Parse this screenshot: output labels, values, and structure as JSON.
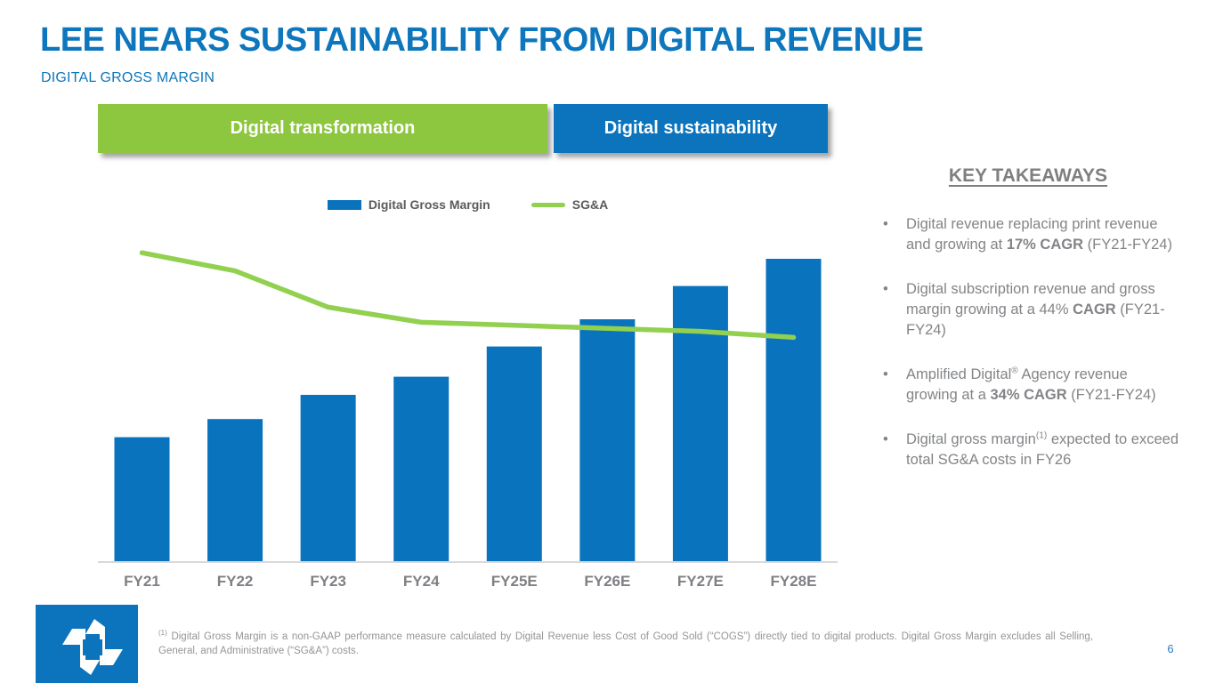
{
  "slide": {
    "title": "LEE NEARS SUSTAINABILITY FROM DIGITAL REVENUE",
    "subtitle": "DIGITAL GROSS MARGIN",
    "page_number": "6"
  },
  "banners": [
    {
      "label": "Digital transformation",
      "color": "#8dc63f"
    },
    {
      "label": "Digital sustainability",
      "color": "#0b74bd"
    }
  ],
  "legend": [
    {
      "label": "Digital Gross Margin",
      "type": "bar",
      "color": "#0a73bd"
    },
    {
      "label": "SG&A",
      "type": "line",
      "color": "#92d050"
    }
  ],
  "chart_data": {
    "type": "bar",
    "title": "",
    "xlabel": "",
    "ylabel": "",
    "categories": [
      "FY21",
      "FY22",
      "FY23",
      "FY24",
      "FY25E",
      "FY26E",
      "FY27E",
      "FY28E"
    ],
    "series": [
      {
        "name": "Digital Gross Margin",
        "type": "bar",
        "color": "#0a73bd",
        "values": [
          41,
          47,
          55,
          61,
          71,
          80,
          91,
          100
        ]
      },
      {
        "name": "SG&A",
        "type": "line",
        "color": "#92d050",
        "values": [
          102,
          96,
          84,
          79,
          78,
          77,
          76,
          74
        ]
      }
    ],
    "unit": "relative scale (FY28E bar = 100), no y-axis shown",
    "ylim": [
      0,
      112
    ],
    "grid": false,
    "legend_position": "top-center",
    "axis_label_color": "#7f8084",
    "axis_line_color": "#d9d9d9"
  },
  "key_takeaways": {
    "heading": "KEY TAKEAWAYS",
    "bullets": [
      {
        "segments": [
          {
            "t": "Digital revenue replacing print revenue and growing at "
          },
          {
            "t": "17% CAGR",
            "b": true
          },
          {
            "t": " (FY21-FY24)"
          }
        ]
      },
      {
        "segments": [
          {
            "t": "Digital subscription revenue and gross margin growing at a 44% "
          },
          {
            "t": "CAGR",
            "b": true
          },
          {
            "t": " (FY21-FY24)"
          }
        ]
      },
      {
        "segments": [
          {
            "t": "Amplified Digital"
          },
          {
            "t": "®",
            "sup": true
          },
          {
            "t": " Agency revenue growing at a "
          },
          {
            "t": "34% CAGR",
            "b": true
          },
          {
            "t": " (FY21-FY24)"
          }
        ]
      },
      {
        "segments": [
          {
            "t": "Digital gross margin"
          },
          {
            "t": "(1)",
            "sup": true
          },
          {
            "t": " expected to exceed total SG&A costs in FY26"
          }
        ]
      }
    ]
  },
  "footnote": {
    "segments": [
      {
        "t": "(1)",
        "sup": true
      },
      {
        "t": " Digital Gross Margin is a non-GAAP performance measure calculated by Digital Revenue less Cost of Good Sold (“COGS”) directly tied to digital products. Digital Gross Margin excludes all Selling, General, and Administrative (“SG&A”) costs."
      }
    ]
  },
  "logo": {
    "name": "Lee Enterprises logo",
    "color": "#0b74bd"
  },
  "colors": {
    "title_blue": "#0d76bc",
    "bar_blue": "#0a73bd",
    "line_green": "#92d050",
    "banner_green": "#8dc63f",
    "banner_blue": "#0b74bd",
    "gray_text": "#828487",
    "axis_gray": "#7f8084"
  }
}
